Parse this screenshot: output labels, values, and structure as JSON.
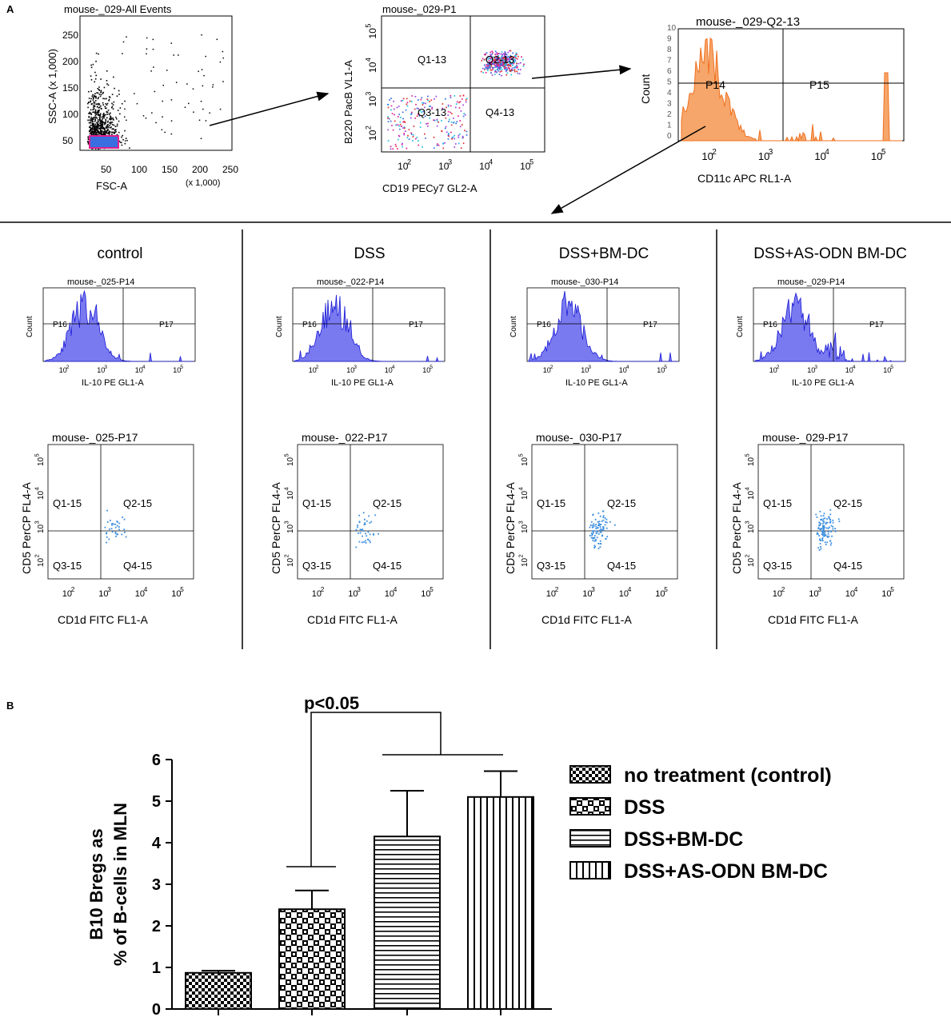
{
  "panel_a": {
    "label": "A",
    "top_plots": [
      {
        "title": "mouse-_029-All Events",
        "xlabel": "FSC-A",
        "ylabel": "SSC-A (x 1,000)",
        "xunit": "(x 1,000)",
        "xticks": [
          "50",
          "100",
          "150",
          "200",
          "250"
        ],
        "yticks": [
          "50",
          "100",
          "150",
          "200",
          "250"
        ]
      },
      {
        "title": "mouse-_029-P1",
        "xlabel": "CD19 PECy7 GL2-A",
        "ylabel": "B220 PacB VL1-A",
        "q": [
          "Q1-13",
          "Q2-13",
          "Q3-13",
          "Q4-13"
        ]
      },
      {
        "title": "mouse-_029-Q2-13",
        "xlabel": "CD11c APC RL1-A",
        "ylabel": "Count",
        "gates": [
          "P14",
          "P15"
        ],
        "yticks": [
          "0",
          "1",
          "2",
          "3",
          "4",
          "5",
          "6",
          "7",
          "8",
          "9",
          "10"
        ]
      }
    ],
    "log_x": [
      "10",
      "10",
      "10",
      "10"
    ],
    "log_exp": [
      "2",
      "3",
      "4",
      "5"
    ],
    "groups": [
      {
        "name": "control",
        "hist_title": "mouse-_025-P14",
        "dot_title": "mouse-_025-P17"
      },
      {
        "name": "DSS",
        "hist_title": "mouse-_022-P14",
        "dot_title": "mouse-_022-P17"
      },
      {
        "name": "DSS+BM-DC",
        "hist_title": "mouse-_030-P14",
        "dot_title": "mouse-_030-P17"
      },
      {
        "name": "DSS+AS-ODN BM-DC",
        "hist_title": "mouse-_029-P14",
        "dot_title": "mouse-_029-P17"
      }
    ],
    "hist": {
      "xlabel": "IL-10 PE GL1-A",
      "ylabel": "Count",
      "gates": [
        "P16",
        "P17"
      ]
    },
    "dot": {
      "xlabel": "CD1d FITC FL1-A",
      "ylabel": "CD5 PerCP FL4-A",
      "q": [
        "Q1-15",
        "Q2-15",
        "Q3-15",
        "Q4-15"
      ]
    }
  },
  "chart_data": {
    "type": "bar",
    "panel_label": "B",
    "ylabel_line1": "B10 Bregs as",
    "ylabel_line2": "% of B-cells in MLN",
    "ylim": [
      0,
      6
    ],
    "yticks": [
      "0",
      "1",
      "2",
      "3",
      "4",
      "5",
      "6"
    ],
    "categories": [
      "no treatment (control)",
      "DSS",
      "DSS+BM-DC",
      "DSS+AS-ODN BM-DC"
    ],
    "values": [
      0.87,
      2.4,
      4.15,
      5.1
    ],
    "errors": [
      0.05,
      0.45,
      1.1,
      0.62
    ],
    "annotation": "p<0.05",
    "legend": [
      "no treatment (control)",
      "DSS",
      "DSS+BM-DC",
      "DSS+AS-ODN BM-DC"
    ],
    "legend_position": "right",
    "colors": {
      "histogram": "#1a1ad6",
      "gate_fill": "#f08030",
      "scatter": "#3a8ee0",
      "bars": "#000000"
    }
  }
}
